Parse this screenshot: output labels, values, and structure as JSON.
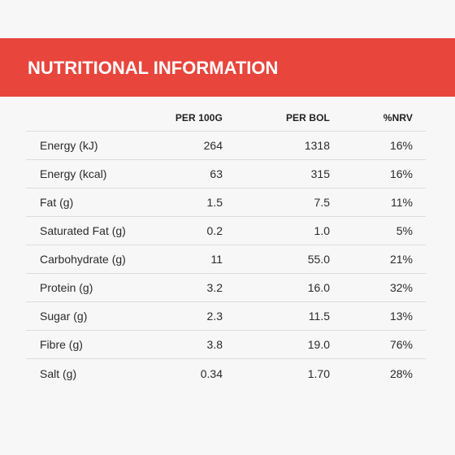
{
  "header": {
    "title": "NUTRITIONAL INFORMATION"
  },
  "colors": {
    "banner": "#e8453c",
    "background": "#f7f7f7",
    "text": "#2b2b2b",
    "divider": "#dcdcdc"
  },
  "table": {
    "columns": [
      "",
      "PER 100G",
      "PER BOL",
      "%NRV"
    ],
    "rows": [
      {
        "name": "Energy (kJ)",
        "per100": "264",
        "perBol": "1318",
        "nrv": "16%"
      },
      {
        "name": "Energy (kcal)",
        "per100": "63",
        "perBol": "315",
        "nrv": "16%"
      },
      {
        "name": "Fat (g)",
        "per100": "1.5",
        "perBol": "7.5",
        "nrv": "11%"
      },
      {
        "name": "Saturated Fat (g)",
        "per100": "0.2",
        "perBol": "1.0",
        "nrv": "5%"
      },
      {
        "name": "Carbohydrate (g)",
        "per100": "11",
        "perBol": "55.0",
        "nrv": "21%"
      },
      {
        "name": "Protein (g)",
        "per100": "3.2",
        "perBol": "16.0",
        "nrv": "32%"
      },
      {
        "name": "Sugar (g)",
        "per100": "2.3",
        "perBol": "11.5",
        "nrv": "13%"
      },
      {
        "name": "Fibre (g)",
        "per100": "3.8",
        "perBol": "19.0",
        "nrv": "76%"
      },
      {
        "name": "Salt (g)",
        "per100": "0.34",
        "perBol": "1.70",
        "nrv": "28%"
      }
    ]
  }
}
